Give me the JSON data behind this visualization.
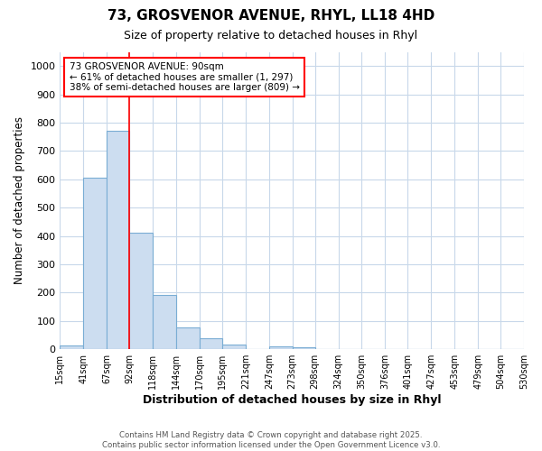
{
  "title_line1": "73, GROSVENOR AVENUE, RHYL, LL18 4HD",
  "title_line2": "Size of property relative to detached houses in Rhyl",
  "xlabel": "Distribution of detached houses by size in Rhyl",
  "ylabel": "Number of detached properties",
  "bins": [
    15,
    41,
    67,
    92,
    118,
    144,
    170,
    195,
    221,
    247,
    273,
    298,
    324,
    350,
    376,
    401,
    427,
    453,
    479,
    504,
    530
  ],
  "counts": [
    12,
    607,
    770,
    413,
    193,
    78,
    38,
    17,
    0,
    10,
    7,
    0,
    0,
    0,
    0,
    0,
    0,
    0,
    0,
    0
  ],
  "bar_color": "#ccddf0",
  "bar_edge_color": "#7aadd4",
  "grid_color": "#c8d8ea",
  "red_line_x": 92,
  "annotation_line1": "73 GROSVENOR AVENUE: 90sqm",
  "annotation_line2": "← 61% of detached houses are smaller (1, 297)",
  "annotation_line3": "38% of semi-detached houses are larger (809) →",
  "ylim": [
    0,
    1050
  ],
  "yticks": [
    0,
    100,
    200,
    300,
    400,
    500,
    600,
    700,
    800,
    900,
    1000
  ],
  "footnote": "Contains HM Land Registry data © Crown copyright and database right 2025.\nContains public sector information licensed under the Open Government Licence v3.0.",
  "bg_color": "#ffffff"
}
